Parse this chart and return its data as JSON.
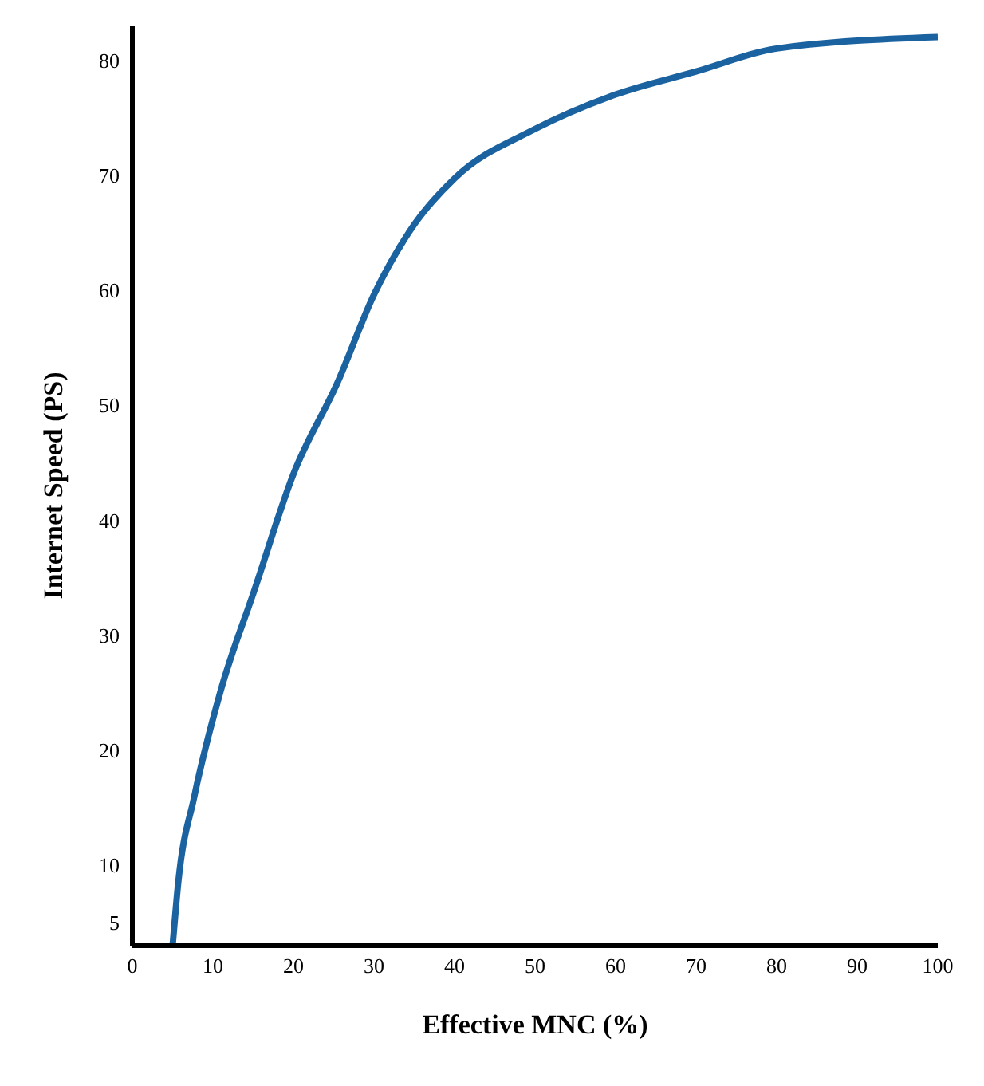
{
  "chart_data": {
    "type": "line",
    "xlabel": "Effective MNC (%)",
    "ylabel": "Internet Speed (PS)",
    "x": [
      5,
      5.7,
      7.7,
      10.9,
      15.2,
      20,
      25.5,
      30,
      35,
      40,
      50,
      60,
      70,
      80,
      100
    ],
    "series": [
      {
        "color": "#1b63a0",
        "values": [
          3,
          8.5,
          16,
          25,
          34,
          44,
          52,
          59.6,
          65.7,
          69.7,
          74,
          77,
          79,
          81,
          82
        ]
      }
    ],
    "xlim": [
      0,
      100
    ],
    "xticks": [
      0,
      10,
      20,
      30,
      40,
      50,
      60,
      70,
      80,
      90,
      100
    ],
    "ylim": [
      3,
      83
    ],
    "yticks": [
      5,
      10,
      20,
      30,
      40,
      50,
      60,
      70,
      80
    ],
    "grid": false,
    "legend": false,
    "marker": "none",
    "line_style": "solid"
  }
}
